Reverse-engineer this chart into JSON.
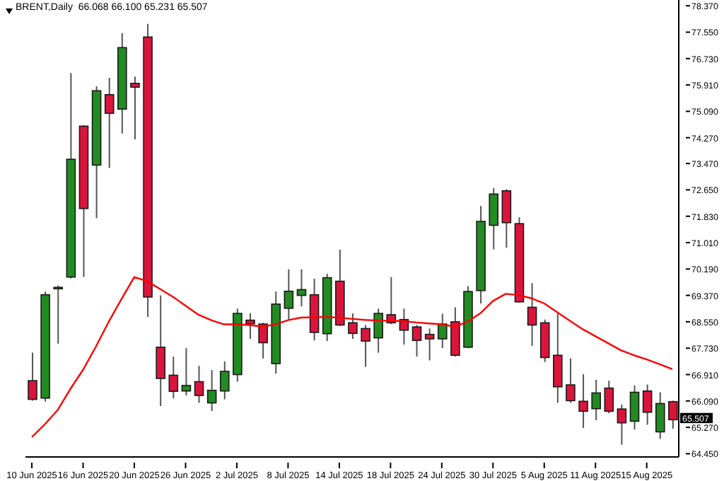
{
  "chart_data": {
    "type": "candlestick",
    "annotations": [
      "BRENT,Daily  66.068 66.100 65.231 65.507",
      {
        "text": "65.507",
        "y": 65.507
      }
    ],
    "categories": [
      "10 Jun 2025",
      null,
      null,
      null,
      "16 Jun 2025",
      null,
      null,
      null,
      "20 Jun 2025",
      null,
      null,
      null,
      "26 Jun 2025",
      null,
      null,
      null,
      "2 Jul 2025",
      null,
      null,
      null,
      "8 Jul 2025",
      null,
      null,
      null,
      "14 Jul 2025",
      null,
      null,
      null,
      "18 Jul 2025",
      null,
      null,
      null,
      "24 Jul 2025",
      null,
      null,
      null,
      "30 Jul 2025",
      null,
      null,
      null,
      "5 Aug 2025",
      null,
      null,
      null,
      "11 Aug 2025",
      null,
      null,
      null,
      "15 Aug 2025",
      null,
      null
    ],
    "ohlc": [
      [
        66.72,
        67.59,
        66.1,
        66.14
      ],
      [
        66.18,
        69.49,
        66.07,
        69.39
      ],
      [
        69.6,
        69.68,
        67.87,
        69.62
      ],
      [
        69.94,
        76.28,
        69.9,
        73.6
      ],
      [
        74.63,
        74.66,
        69.94,
        72.07
      ],
      [
        73.42,
        75.87,
        71.77,
        75.73
      ],
      [
        75.61,
        76.13,
        73.33,
        75.03
      ],
      [
        75.16,
        77.52,
        74.4,
        77.07
      ],
      [
        75.96,
        76.17,
        74.22,
        75.84
      ],
      [
        77.4,
        77.81,
        68.7,
        69.32
      ],
      [
        67.76,
        69.37,
        65.93,
        66.79
      ],
      [
        66.89,
        67.47,
        66.17,
        66.39
      ],
      [
        66.4,
        67.73,
        66.26,
        66.57
      ],
      [
        66.69,
        67.18,
        66.03,
        66.26
      ],
      [
        66.03,
        67.05,
        65.78,
        66.42
      ],
      [
        66.4,
        67.32,
        66.14,
        67.01
      ],
      [
        66.91,
        68.96,
        66.69,
        68.81
      ],
      [
        68.6,
        68.81,
        68.02,
        68.49
      ],
      [
        68.48,
        68.52,
        67.41,
        67.9
      ],
      [
        67.25,
        69.49,
        66.94,
        69.1
      ],
      [
        68.97,
        70.18,
        68.6,
        69.5
      ],
      [
        69.37,
        70.18,
        69.03,
        69.55
      ],
      [
        69.39,
        69.89,
        67.97,
        68.22
      ],
      [
        68.18,
        70.04,
        67.95,
        69.92
      ],
      [
        69.81,
        70.79,
        68.42,
        68.45
      ],
      [
        68.52,
        68.81,
        68.02,
        68.19
      ],
      [
        68.34,
        68.45,
        67.15,
        67.95
      ],
      [
        68.05,
        68.96,
        67.59,
        68.81
      ],
      [
        68.77,
        69.94,
        68.48,
        68.52
      ],
      [
        68.62,
        68.96,
        67.84,
        68.29
      ],
      [
        68.39,
        68.45,
        67.47,
        67.97
      ],
      [
        68.16,
        68.34,
        67.35,
        68.02
      ],
      [
        68.02,
        68.8,
        67.73,
        68.48
      ],
      [
        68.55,
        69.0,
        67.47,
        67.51
      ],
      [
        67.76,
        69.66,
        67.73,
        69.49
      ],
      [
        69.52,
        72.15,
        69.12,
        71.67
      ],
      [
        71.55,
        72.71,
        70.8,
        72.52
      ],
      [
        72.62,
        72.67,
        70.85,
        71.63
      ],
      [
        71.6,
        71.8,
        69.15,
        69.17
      ],
      [
        69.0,
        69.75,
        67.8,
        68.45
      ],
      [
        68.52,
        68.62,
        67.3,
        67.44
      ],
      [
        67.51,
        68.8,
        66.03,
        66.53
      ],
      [
        66.59,
        67.41,
        66.03,
        66.1
      ],
      [
        66.08,
        66.92,
        65.25,
        65.77
      ],
      [
        65.85,
        66.75,
        65.49,
        66.34
      ],
      [
        66.49,
        66.72,
        65.71,
        65.77
      ],
      [
        65.84,
        65.98,
        64.73,
        65.41
      ],
      [
        65.46,
        66.57,
        65.2,
        66.36
      ],
      [
        66.4,
        66.6,
        65.35,
        65.74
      ],
      [
        65.13,
        66.36,
        64.91,
        66.01
      ],
      [
        66.068,
        66.1,
        65.231,
        65.507
      ]
    ],
    "colors": [
      "#dc143c",
      "#228b22",
      "#228b22",
      "#228b22",
      "#dc143c",
      "#228b22",
      "#dc143c",
      "#228b22",
      "#dc143c",
      "#dc143c",
      "#dc143c",
      "#dc143c",
      "#228b22",
      "#dc143c",
      "#228b22",
      "#228b22",
      "#228b22",
      "#dc143c",
      "#dc143c",
      "#228b22",
      "#228b22",
      "#228b22",
      "#dc143c",
      "#228b22",
      "#dc143c",
      "#dc143c",
      "#dc143c",
      "#228b22",
      "#dc143c",
      "#dc143c",
      "#dc143c",
      "#dc143c",
      "#228b22",
      "#dc143c",
      "#228b22",
      "#228b22",
      "#228b22",
      "#dc143c",
      "#dc143c",
      "#dc143c",
      "#dc143c",
      "#dc143c",
      "#dc143c",
      "#dc143c",
      "#228b22",
      "#dc143c",
      "#dc143c",
      "#228b22",
      "#dc143c",
      "#228b22",
      "#dc143c"
    ],
    "series": [
      {
        "type": "line",
        "color": "#ff0000",
        "values": [
          64.97,
          65.36,
          65.8,
          66.46,
          67.06,
          67.78,
          68.55,
          69.26,
          69.94,
          69.81,
          69.57,
          69.33,
          69.05,
          68.77,
          68.6,
          68.47,
          68.47,
          68.45,
          68.4,
          68.47,
          68.6,
          68.68,
          68.69,
          68.7,
          68.68,
          68.64,
          68.61,
          68.59,
          68.58,
          68.57,
          68.53,
          68.5,
          68.47,
          68.4,
          68.55,
          68.81,
          69.2,
          69.42,
          69.38,
          69.28,
          69.12,
          68.85,
          68.58,
          68.32,
          68.1,
          67.88,
          67.66,
          67.51,
          67.38,
          67.23,
          67.08
        ]
      }
    ],
    "ylim": [
      64.35,
      78.55
    ],
    "yticks": [
      {
        "value": 64.45,
        "label": "64.450"
      },
      {
        "value": 65.27,
        "label": "65.270"
      },
      {
        "value": 66.09,
        "label": "66.090"
      },
      {
        "value": 66.91,
        "label": "66.910"
      },
      {
        "value": 67.73,
        "label": "67.730"
      },
      {
        "value": 68.55,
        "label": "68.550"
      },
      {
        "value": 69.37,
        "label": "69.370"
      },
      {
        "value": 70.19,
        "label": "70.190"
      },
      {
        "value": 71.01,
        "label": "71.010"
      },
      {
        "value": 71.83,
        "label": "71.830"
      },
      {
        "value": 72.65,
        "label": "72.650"
      },
      {
        "value": 73.47,
        "label": "73.470"
      },
      {
        "value": 74.27,
        "label": "74.270"
      },
      {
        "value": 75.09,
        "label": "75.090"
      },
      {
        "value": 75.91,
        "label": "75.910"
      },
      {
        "value": 76.73,
        "label": "76.730"
      },
      {
        "value": 77.55,
        "label": "77.550"
      },
      {
        "value": 78.37,
        "label": "78.370"
      }
    ]
  }
}
